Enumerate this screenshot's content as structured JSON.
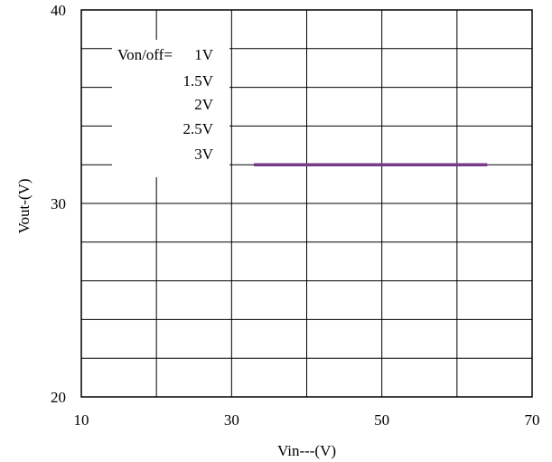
{
  "chart_data": {
    "type": "line",
    "xlabel": "Vin---(V)",
    "ylabel": "Vout-(V)",
    "xlim": [
      10,
      70
    ],
    "ylim": [
      20,
      40
    ],
    "x_ticks": [
      10,
      30,
      50,
      70
    ],
    "x_tick_labels": [
      "10",
      "30",
      "50",
      "70"
    ],
    "y_ticks": [
      20,
      30,
      40
    ],
    "y_tick_labels": [
      "20",
      "30",
      "40"
    ],
    "x_grid_step": 10,
    "y_grid_step": 2,
    "grid": true,
    "legend_position": "top-left",
    "legend_title": "Von/off=",
    "series": [
      {
        "name": "1V",
        "color": "#2b2b6b",
        "x": [
          33,
          64
        ],
        "y": [
          32,
          32
        ]
      },
      {
        "name": "1.5V",
        "color": "#4a2a6a",
        "x": [
          33,
          64
        ],
        "y": [
          32,
          32
        ]
      },
      {
        "name": "2V",
        "color": "#5a2870",
        "x": [
          33,
          64
        ],
        "y": [
          32,
          32
        ]
      },
      {
        "name": "2.5V",
        "color": "#6a2a78",
        "x": [
          33,
          64
        ],
        "y": [
          32,
          32
        ]
      },
      {
        "name": "3V",
        "color": "#7a3a8a",
        "x": [
          33,
          64
        ],
        "y": [
          32,
          32
        ]
      }
    ]
  }
}
